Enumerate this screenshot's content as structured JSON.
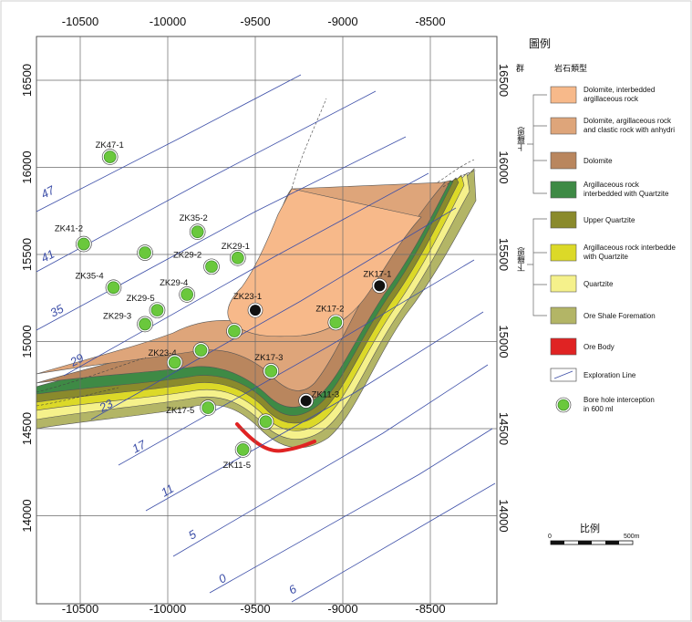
{
  "map": {
    "x_ticks": [
      "-10500",
      "-10000",
      "-9500",
      "-9000",
      "-8500"
    ],
    "y_ticks": [
      "16500",
      "16000",
      "15500",
      "15000",
      "14500",
      "14000"
    ],
    "exploration_lines": [
      "47",
      "41",
      "35",
      "29",
      "23",
      "17",
      "11",
      "5",
      "0",
      "6"
    ],
    "boreholes": [
      {
        "id": "ZK47-1",
        "label": "ZK47-1",
        "x": -10330,
        "y": 16060,
        "type": "interception"
      },
      {
        "id": "ZK41-2",
        "label": "ZK41-2",
        "x": -10480,
        "y": 15560,
        "type": "interception"
      },
      {
        "id": "ZK41-x",
        "label": "",
        "x": -10130,
        "y": 15510,
        "type": "interception"
      },
      {
        "id": "ZK35-2",
        "label": "ZK35-2",
        "x": -9830,
        "y": 15630,
        "type": "interception"
      },
      {
        "id": "ZK29-1",
        "label": "ZK29-1",
        "x": -9600,
        "y": 15480,
        "type": "interception"
      },
      {
        "id": "ZK29-2",
        "label": "ZK29-2",
        "x": -9750,
        "y": 15430,
        "type": "interception"
      },
      {
        "id": "ZK35-4",
        "label": "ZK35-4",
        "x": -10310,
        "y": 15310,
        "type": "interception"
      },
      {
        "id": "ZK29-4",
        "label": "ZK29-4",
        "x": -9890,
        "y": 15270,
        "type": "interception"
      },
      {
        "id": "ZK29-5",
        "label": "ZK29-5",
        "x": -10060,
        "y": 15180,
        "type": "interception"
      },
      {
        "id": "ZK29-3",
        "label": "ZK29-3",
        "x": -10130,
        "y": 15100,
        "type": "interception"
      },
      {
        "id": "ZK23-1",
        "label": "ZK23-1",
        "x": -9500,
        "y": 15180,
        "type": "black"
      },
      {
        "id": "ZK23-x",
        "label": "",
        "x": -9620,
        "y": 15060,
        "type": "interception"
      },
      {
        "id": "ZK17-1",
        "label": "ZK17-1",
        "x": -8790,
        "y": 15320,
        "type": "black"
      },
      {
        "id": "ZK17-2",
        "label": "ZK17-2",
        "x": -9040,
        "y": 15110,
        "type": "interception"
      },
      {
        "id": "ZK23-4",
        "label": "ZK23-4",
        "x": -9810,
        "y": 14950,
        "type": "interception"
      },
      {
        "id": "ZK23-y",
        "label": "",
        "x": -9960,
        "y": 14880,
        "type": "interception"
      },
      {
        "id": "ZK17-3",
        "label": "ZK17-3",
        "x": -9410,
        "y": 14830,
        "type": "interception"
      },
      {
        "id": "ZK11-3",
        "label": "ZK11-3",
        "x": -9210,
        "y": 14660,
        "type": "black"
      },
      {
        "id": "ZK17-5",
        "label": "ZK17-5",
        "x": -9770,
        "y": 14620,
        "type": "interception"
      },
      {
        "id": "ZK17-y",
        "label": "",
        "x": -9440,
        "y": 14540,
        "type": "interception"
      },
      {
        "id": "ZK11-5",
        "label": "ZK11-5",
        "x": -9570,
        "y": 14380,
        "type": "interception"
      }
    ]
  },
  "legend": {
    "title": "圖例",
    "col_group": "群",
    "col_rock": "岩石類型",
    "upper_group": "上羅恩",
    "lower_group": "下羅恩",
    "items": [
      {
        "color": "#f7b98a",
        "lines": [
          "Dolomite, interbedded",
          "argillaceous rock"
        ]
      },
      {
        "color": "#dea57a",
        "lines": [
          "Dolomite,  argillaceous rock",
          "and clastic rock with anhydri"
        ]
      },
      {
        "color": "#b9865e",
        "lines": [
          "Dolomite"
        ]
      },
      {
        "color": "#3e8a45",
        "lines": [
          "Argillaceous rock",
          "interbedded with Quartzite"
        ]
      },
      {
        "color": "#8a8a2c",
        "lines": [
          "Upper Quartzite"
        ]
      },
      {
        "color": "#dcd928",
        "lines": [
          "Argillaceous rock interbedde",
          "with Quartzite"
        ]
      },
      {
        "color": "#f5f18b",
        "lines": [
          "Quartzite"
        ]
      },
      {
        "color": "#b3b566",
        "lines": [
          "Ore Shale Foremation"
        ]
      },
      {
        "color": "#e02323",
        "lines": [
          "Ore Body"
        ]
      },
      {
        "color": "#ffffff",
        "lines": [
          "Exploration Line"
        ]
      },
      {
        "color": "#6ac83c",
        "lines": [
          "Bore hole interception",
          "in 600 ml"
        ]
      }
    ]
  },
  "scale": {
    "title": "比例",
    "zero": "0",
    "end": "500m"
  },
  "colors": {
    "orange_light": "#f7b98a",
    "orange_mid": "#dea57a",
    "brown": "#b9865e",
    "green": "#3e8a45",
    "olive": "#8a8a2c",
    "yellow": "#dcd928",
    "light_yellow": "#f5f18b",
    "khaki": "#b3b566",
    "ore": "#e02323",
    "blue": "#3d4fa8",
    "grid": "#6a6a6a"
  }
}
